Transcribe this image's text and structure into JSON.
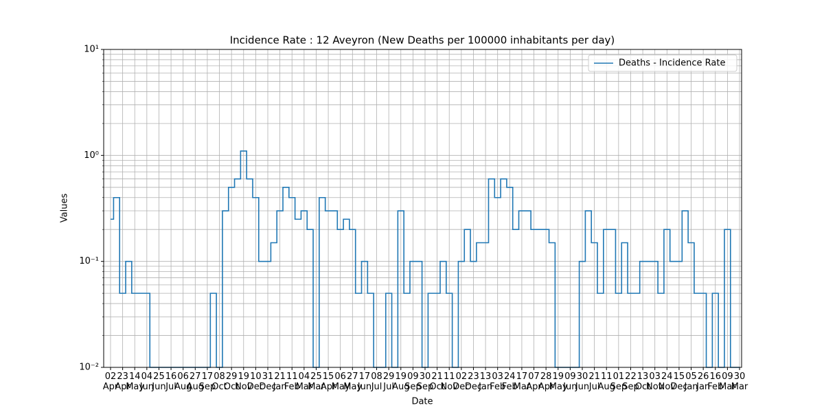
{
  "chart_data": {
    "type": "line",
    "title": "Incidence Rate : 12 Aveyron (New Deaths per 100000 inhabitants per day)",
    "x_label": "Date",
    "y_label": "Values",
    "y_scale": "log",
    "grid": true,
    "minor_grid": true,
    "legend": "upper right",
    "ylim": [
      0.01,
      10
    ],
    "yticks": [
      {
        "value": 0.01,
        "label": "10⁻²"
      },
      {
        "value": 0.1,
        "label": "10⁻¹"
      },
      {
        "value": 1,
        "label": "10⁰"
      },
      {
        "value": 10,
        "label": "10¹"
      }
    ],
    "categories": [
      "02 Apr",
      null,
      "23 Apr",
      null,
      "14 May",
      null,
      "04 Jun",
      null,
      "25 Jun",
      null,
      "16 Jul",
      null,
      "06 Aug",
      null,
      "27 Aug",
      null,
      "17 Sep",
      null,
      "08 Oct",
      null,
      "29 Oct",
      null,
      "19 Nov",
      null,
      "10 Dec",
      null,
      "31 Dec",
      null,
      "21 Jan",
      null,
      "11 Feb",
      null,
      "04 Mar",
      null,
      "25 Mar",
      null,
      "15 Apr",
      null,
      "06 May",
      null,
      "27 May",
      null,
      "17 Jun",
      null,
      "08 Jul",
      null,
      "29 Jul",
      null,
      "19 Aug",
      null,
      "09 Sep",
      null,
      "30 Sep",
      null,
      "21 Oct",
      null,
      "11 Nov",
      null,
      "02 Dec",
      null,
      "23 Dec",
      null,
      "13 Jan",
      null,
      "03 Feb",
      null,
      "24 Feb",
      null,
      "17 Mar",
      null,
      "07 Apr",
      null,
      "28 Apr",
      null,
      "19 May",
      null,
      "09 Jun",
      null,
      "30 Jun",
      null,
      "21 Jul",
      null,
      "11 Aug",
      null,
      "01 Sep",
      null,
      "22 Sep",
      null,
      "13 Oct",
      null,
      "03 Nov",
      null,
      "24 Nov",
      null,
      "15 Dec",
      null,
      "05 Jan",
      null,
      "26 Jan",
      null,
      "16 Feb",
      null,
      "09 Mar",
      null,
      "30 Mar"
    ],
    "series": [
      {
        "name": "Deaths - Incidence Rate",
        "color": "#1f77b4",
        "values": [
          0.25,
          0.4,
          0.05,
          0.1,
          0.05,
          0.05,
          0.05,
          0,
          0,
          0,
          0,
          0,
          0,
          0,
          0,
          0,
          0,
          0.05,
          0,
          0.3,
          0.5,
          0.6,
          1.1,
          0.6,
          0.4,
          0.1,
          0.1,
          0.15,
          0.3,
          0.5,
          0.4,
          0.25,
          0.3,
          0.2,
          0,
          0.4,
          0.3,
          0.3,
          0.2,
          0.25,
          0.2,
          0.05,
          0.1,
          0.05,
          0,
          0,
          0.05,
          0,
          0.3,
          0.05,
          0.1,
          0.1,
          0,
          0.05,
          0.05,
          0.1,
          0.05,
          0,
          0.1,
          0.2,
          0.1,
          0.15,
          0.15,
          0.6,
          0.4,
          0.6,
          0.5,
          0.2,
          0.3,
          0.3,
          0.2,
          0.2,
          0.2,
          0.15,
          0,
          0,
          0,
          0,
          0.1,
          0.3,
          0.15,
          0.05,
          0.2,
          0.2,
          0.05,
          0.15,
          0.05,
          0.05,
          0.1,
          0.1,
          0.1,
          0.05,
          0.2,
          0.1,
          0.1,
          0.3,
          0.15,
          0.05,
          0.05,
          0,
          0.05,
          0,
          0.2,
          0,
          0
        ]
      }
    ]
  }
}
